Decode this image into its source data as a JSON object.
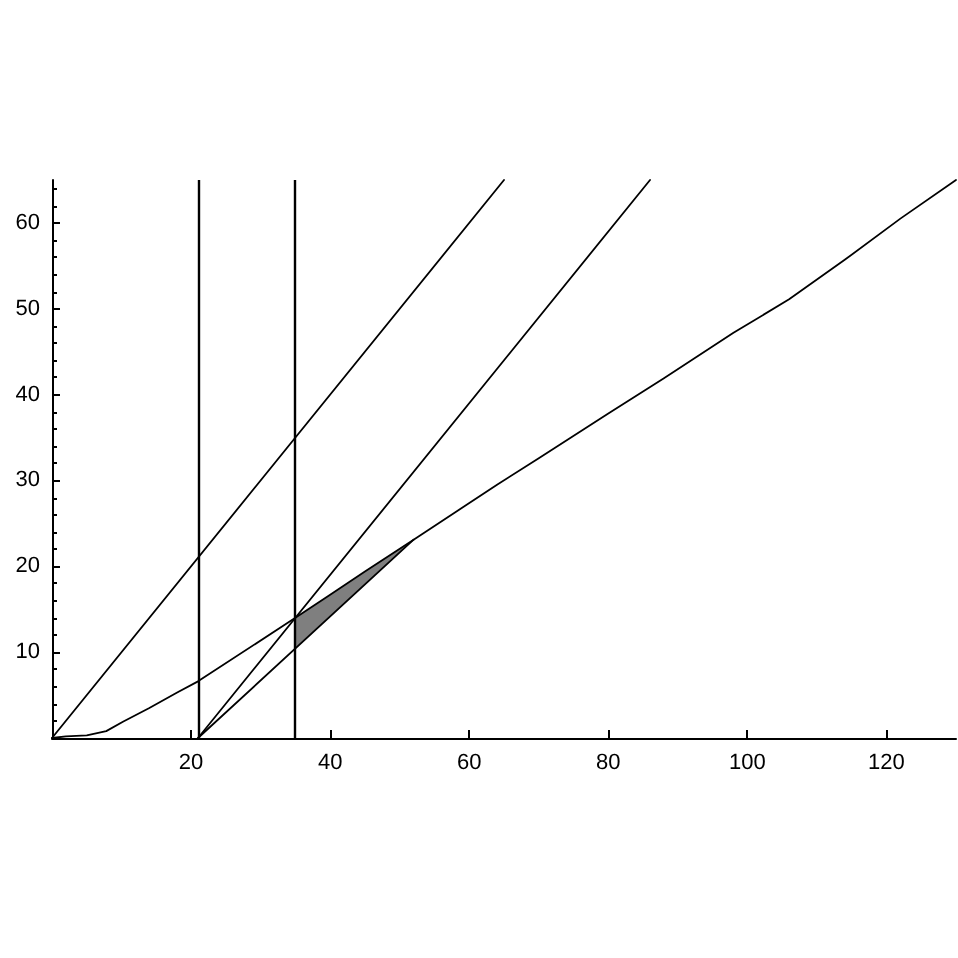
{
  "chart_data": {
    "type": "line",
    "xlim": [
      0,
      130
    ],
    "ylim": [
      0,
      65
    ],
    "xticks": [
      20,
      40,
      60,
      80,
      100,
      120
    ],
    "yticks": [
      10,
      20,
      30,
      40,
      50,
      60
    ],
    "marker": "none",
    "line_style": "solid",
    "grid": false,
    "series": [
      {
        "color": "#000000",
        "x": [
          0,
          65
        ],
        "values": [
          0,
          65
        ]
      },
      {
        "color": "#000000",
        "x": [
          21,
          86
        ],
        "values": [
          0,
          65
        ]
      },
      {
        "color": "#000000",
        "x": [
          21,
          52
        ],
        "values": [
          0,
          23.1
        ]
      },
      {
        "color": "#000000",
        "x": [
          0,
          2,
          5,
          7.8,
          10.2,
          14,
          18,
          21,
          35,
          40,
          45,
          52,
          58,
          64,
          70,
          80,
          88,
          98,
          106,
          114,
          122,
          130
        ],
        "values": [
          0,
          0.2,
          0.3,
          0.8,
          1.9,
          3.5,
          5.3,
          6.6,
          14,
          16.7,
          19.4,
          23.1,
          26.3,
          29.5,
          32.6,
          37.8,
          41.9,
          47.2,
          51.1,
          55.7,
          60.5,
          65
        ],
        "lower": [
          null,
          null,
          null,
          null,
          null,
          null,
          null,
          null,
          10.5,
          14.2,
          17.9,
          23.1,
          null,
          null,
          null,
          null,
          null,
          null,
          null,
          null,
          null,
          null
        ],
        "upper": [
          null,
          null,
          null,
          null,
          null,
          null,
          null,
          null,
          14,
          16.7,
          19.4,
          23.1,
          null,
          null,
          null,
          null,
          null,
          null,
          null,
          null,
          null,
          null
        ]
      }
    ],
    "ref_lines": [
      {
        "axis": "x",
        "value": 21,
        "color": "#000000"
      },
      {
        "axis": "x",
        "value": 35,
        "color": "#000000"
      }
    ]
  }
}
